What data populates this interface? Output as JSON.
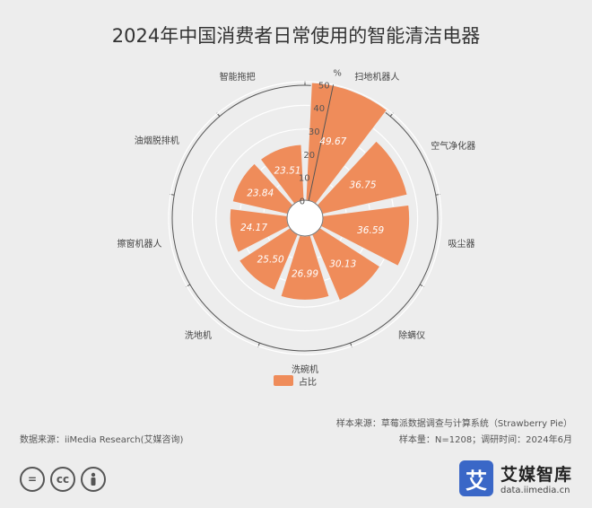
{
  "chart_data": {
    "type": "polar-bar",
    "title": "2024年中国消费者日常使用的智能清洁电器",
    "unit": "%",
    "categories": [
      "扫地机器人",
      "空气净化器",
      "吸尘器",
      "除螨仪",
      "洗碗机",
      "洗地机",
      "擦窗机器人",
      "油烟脱排机",
      "智能拖把"
    ],
    "values": [
      49.67,
      36.75,
      36.59,
      30.13,
      26.99,
      25.5,
      24.17,
      23.84,
      23.51
    ],
    "value_labels": [
      "49.67",
      "36.75",
      "36.59",
      "30.13",
      "26.99",
      "25.50",
      "24.17",
      "23.84",
      "23.51"
    ],
    "radial_axis": {
      "range": [
        0,
        50
      ],
      "ticks": [
        "0",
        "10",
        "20",
        "30",
        "40",
        "50"
      ]
    },
    "legend": {
      "entries": [
        "占比"
      ],
      "placement": "bottom-center"
    },
    "color": "#ef8c5a"
  },
  "footer": {
    "sample_source": "样本来源：草莓派数据调查与计算系统（Strawberry Pie）",
    "sample_size": "样本量：N=1208；调研时间：2024年6月",
    "data_source": "数据来源：iiMedia Research(艾媒咨询)"
  },
  "license_icons": [
    "equal-icon",
    "cc-icon",
    "person-icon"
  ],
  "brand": {
    "mark": "艾",
    "name": "艾媒智库",
    "url": "data.iimedia.cn",
    "color": "#3a67c7"
  }
}
